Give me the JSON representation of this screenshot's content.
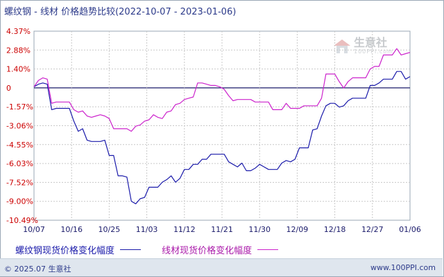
{
  "title": {
    "main": "螺纹钢 - 线材 价格趋势比较",
    "range": "(2022-10-07 - 2023-01-06)"
  },
  "watermark": {
    "brand": "生意社",
    "sub": "100PPI.com"
  },
  "footer": {
    "copyright": "© 2025.07 生意社",
    "site": "www.100PPI.com"
  },
  "colors": {
    "series1": "#1a1aaa",
    "series2": "#cc22cc",
    "zero_line": "#1a1a6a",
    "grid": "#c8c8c8"
  },
  "chart_data": {
    "type": "line",
    "x_tick_labels": [
      "10/07",
      "10/16",
      "10/25",
      "11/03",
      "11/12",
      "11/21",
      "11/30",
      "12/09",
      "12/18",
      "12/27",
      "01/06"
    ],
    "y_tick_labels": [
      "4.37%",
      "2.88%",
      "1.40%",
      "0",
      "-1.57%",
      "-3.06%",
      "-4.55%",
      "-6.03%",
      "-7.52%",
      "-9.00%",
      "-10.49%"
    ],
    "ylim": [
      -10.49,
      4.37
    ],
    "grid": true,
    "series": [
      {
        "name": "螺纹钢现货价格变化幅度",
        "color": "#1a1aaa",
        "values": [
          0,
          0.2,
          0.3,
          0.2,
          -1.8,
          -1.7,
          -1.7,
          -1.7,
          -1.7,
          -2.7,
          -3.5,
          -3.3,
          -4.2,
          -4.3,
          -4.3,
          -4.3,
          -4.2,
          -5.4,
          -5.4,
          -7.0,
          -7.0,
          -7.1,
          -9.0,
          -9.2,
          -8.8,
          -8.7,
          -7.9,
          -7.9,
          -7.9,
          -7.5,
          -7.3,
          -7.0,
          -7.5,
          -7.2,
          -6.5,
          -6.5,
          -6.1,
          -6.1,
          -5.7,
          -5.7,
          -5.3,
          -5.3,
          -5.3,
          -5.3,
          -5.9,
          -6.1,
          -6.3,
          -6.0,
          -6.6,
          -6.6,
          -6.4,
          -6.1,
          -6.3,
          -6.5,
          -6.5,
          -6.5,
          -6.0,
          -5.8,
          -5.9,
          -5.7,
          -4.8,
          -4.8,
          -4.8,
          -3.4,
          -3.3,
          -2.3,
          -1.5,
          -1.3,
          -1.3,
          -1.6,
          -1.5,
          -1.1,
          -0.9,
          -0.9,
          -0.9,
          -0.9,
          0.1,
          0.1,
          0.3,
          0.6,
          0.6,
          0.6,
          1.2,
          1.2,
          0.6,
          0.8
        ]
      },
      {
        "name": "线材现货价格变化幅度",
        "color": "#cc22cc",
        "values": [
          0,
          0.5,
          0.7,
          0.6,
          -1.3,
          -1.2,
          -1.2,
          -1.2,
          -1.2,
          -1.8,
          -2.0,
          -1.9,
          -2.3,
          -2.4,
          -2.3,
          -2.2,
          -2.3,
          -2.5,
          -3.3,
          -3.3,
          -3.3,
          -3.3,
          -3.5,
          -3.1,
          -3.0,
          -2.7,
          -2.6,
          -2.2,
          -2.4,
          -2.5,
          -2.0,
          -1.9,
          -1.4,
          -1.3,
          -1.0,
          -0.9,
          -0.8,
          0.3,
          0.3,
          0.2,
          0.1,
          0.1,
          0.0,
          -0.2,
          -0.7,
          -1.1,
          -1.0,
          -1.0,
          -1.0,
          -1.0,
          -1.2,
          -1.2,
          -1.2,
          -1.2,
          -1.8,
          -1.8,
          -1.8,
          -1.3,
          -1.7,
          -1.7,
          -1.7,
          -1.5,
          -1.5,
          -1.5,
          -1.5,
          -0.9,
          1.0,
          1.0,
          1.0,
          0.4,
          -0.1,
          0.4,
          0.7,
          0.7,
          0.7,
          0.7,
          1.4,
          1.6,
          1.6,
          2.5,
          2.5,
          2.5,
          3.0,
          2.5,
          2.6,
          2.7
        ]
      }
    ]
  }
}
